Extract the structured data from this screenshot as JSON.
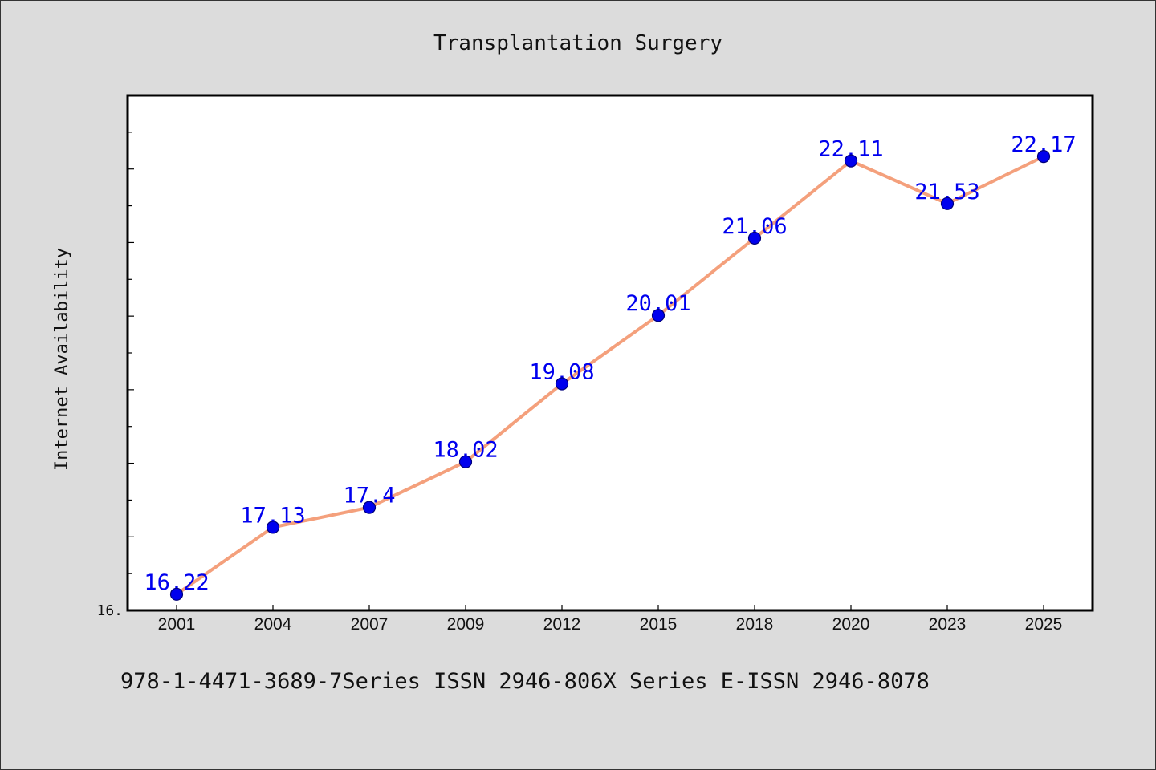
{
  "chart_data": {
    "type": "line",
    "title": "Transplantation Surgery",
    "xlabel": "",
    "ylabel": "Internet Availability",
    "categories": [
      "2001",
      "2004",
      "2007",
      "2009",
      "2012",
      "2015",
      "2018",
      "2020",
      "2023",
      "2025"
    ],
    "series": [
      {
        "values": [
          16.22,
          17.13,
          17.4,
          18.02,
          19.08,
          20.01,
          21.06,
          22.11,
          21.53,
          22.17
        ],
        "labels": [
          "16.22",
          "17.13",
          "17.4",
          "18.02",
          "19.08",
          "20.01",
          "21.06",
          "22.11",
          "21.53",
          "22.17"
        ],
        "line_color": "#f4a07c",
        "marker_color": "#0000ee"
      }
    ],
    "ylim": [
      16.0,
      23.0
    ],
    "y_tick_label": "16.",
    "grid": false,
    "label_color": "#0000ee"
  },
  "footer": {
    "text": "978-1-4471-3689-7Series ISSN 2946-806X Series E-ISSN 2946-8078"
  }
}
